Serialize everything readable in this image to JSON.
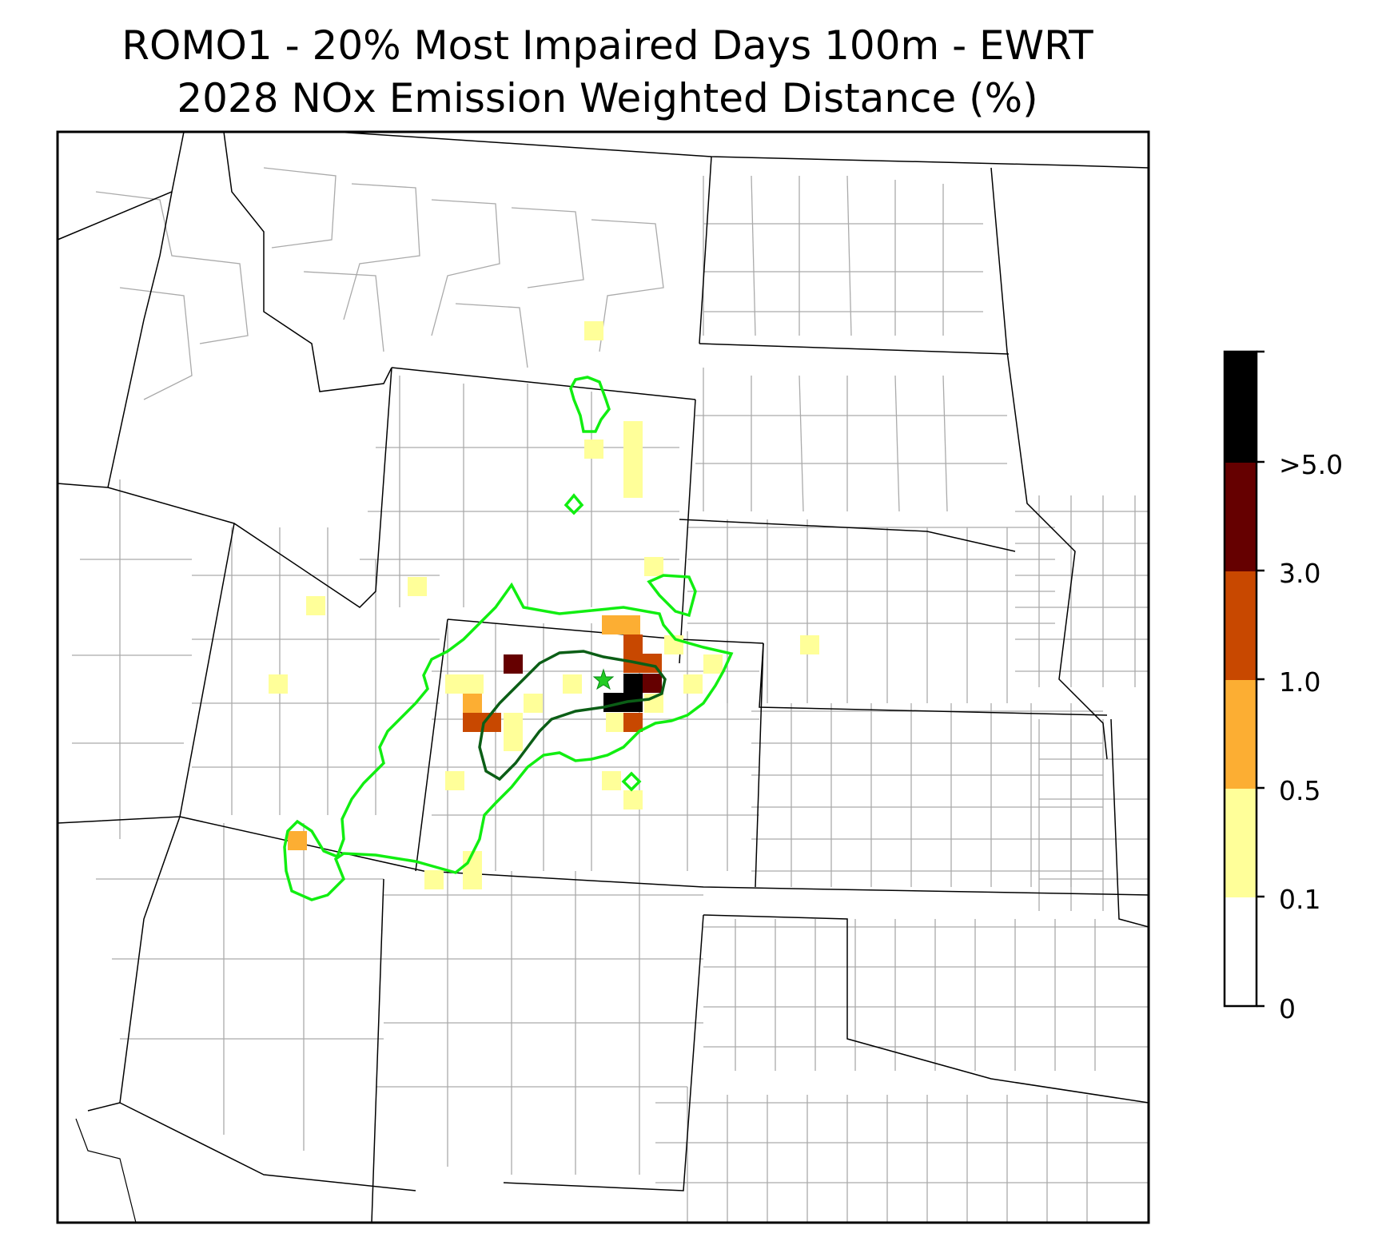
{
  "title": {
    "line1": "ROMO1 - 20% Most Impaired Days 100m - EWRT",
    "line2": "2028 NOx Emission Weighted Distance (%)"
  },
  "legend": {
    "labels": [
      ">5.0",
      "3.0",
      "1.0",
      "0.5",
      "0.1",
      "0"
    ],
    "bins": [
      {
        "range": ">5.0",
        "color": "#000000"
      },
      {
        "range": "3.0-5.0",
        "color": "#650000"
      },
      {
        "range": "1.0-3.0",
        "color": "#c84800"
      },
      {
        "range": "0.5-1.0",
        "color": "#fcae33"
      },
      {
        "range": "0.1-0.5",
        "color": "#ffff99"
      },
      {
        "range": "0-0.1",
        "color": "#ffffff"
      }
    ]
  },
  "map": {
    "site_marker": "star",
    "contours": [
      "bright-green",
      "dark-green"
    ],
    "colors": {
      "outer_contour": "#11ee11",
      "inner_contour": "#0b5e16",
      "state_borders": "#000000",
      "county_borders": "#aaaaaa"
    }
  }
}
